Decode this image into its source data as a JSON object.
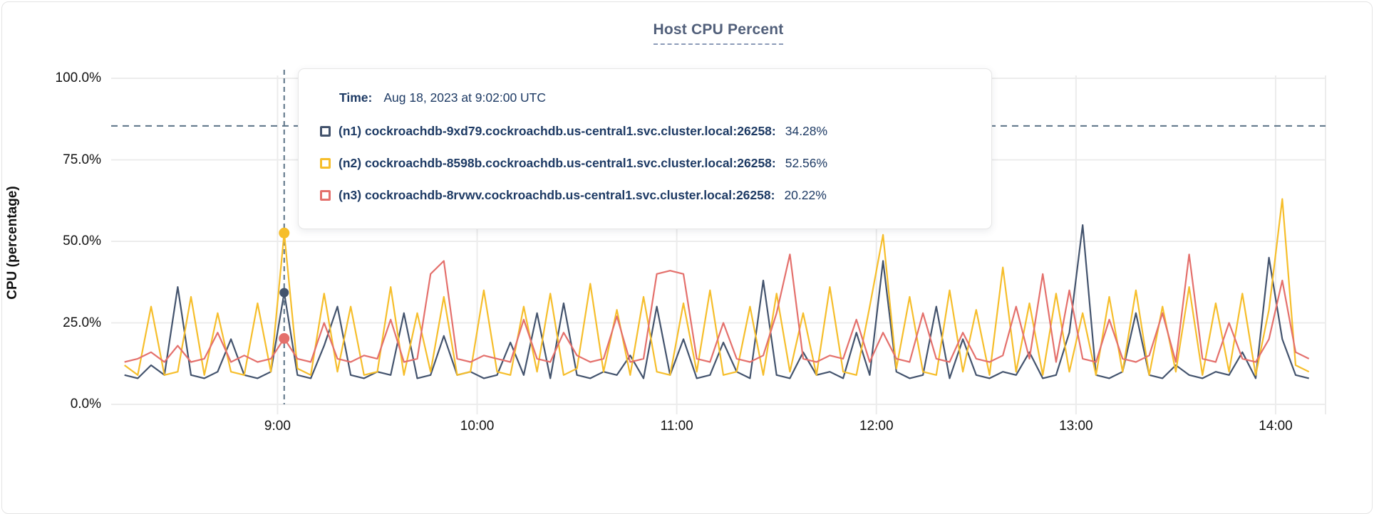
{
  "page_title": "Host CPU Percent",
  "colors": {
    "series_n1": "#43536d",
    "series_n2": "#f6be2b",
    "series_n3": "#e4706c",
    "grid": "#ececec",
    "dashed_guides": "#5b7286",
    "title_text": "#515f7a",
    "title_underline": "#8b9ab8",
    "tooltip_text": "#1d3a64",
    "axis_text": "#111111",
    "card_border": "#e4e4e4"
  },
  "chart_data": {
    "type": "line",
    "title": "Host CPU Percent",
    "xlabel": "",
    "ylabel": "CPU (percentage)",
    "grid": true,
    "legend_position": "tooltip-only",
    "ylim": [
      0,
      100
    ],
    "xlim_minutes": [
      490,
      855
    ],
    "x_start_minute": 494,
    "x_step_minutes": 4,
    "y_ticks": [
      {
        "value": 100,
        "label": "100.0%"
      },
      {
        "value": 75,
        "label": "75.0%"
      },
      {
        "value": 50,
        "label": "50.0%"
      },
      {
        "value": 25,
        "label": "25.0%"
      },
      {
        "value": 0,
        "label": "0.0%"
      }
    ],
    "x_ticks": [
      {
        "minute": 540,
        "label": "9:00"
      },
      {
        "minute": 600,
        "label": "10:00"
      },
      {
        "minute": 660,
        "label": "11:00"
      },
      {
        "minute": 720,
        "label": "12:00"
      },
      {
        "minute": 780,
        "label": "13:00"
      },
      {
        "minute": 840,
        "label": "14:00"
      }
    ],
    "threshold_line": {
      "value": 85.4,
      "style": "dashed"
    },
    "series": [
      {
        "id": "n1",
        "name": "(n1) cockroachdb-9xd79.cockroachdb.us-central1.svc.cluster.local:26258",
        "color": "#43536d",
        "values": [
          9,
          8,
          12,
          9,
          36,
          9,
          8,
          10,
          20,
          9,
          8,
          10,
          34.28,
          9,
          8,
          18,
          30,
          9,
          8,
          10,
          9,
          28,
          8,
          9,
          21,
          9,
          10,
          8,
          9,
          19,
          9,
          28,
          8,
          31,
          9,
          8,
          10,
          9,
          15,
          8,
          30,
          9,
          20,
          8,
          9,
          19,
          10,
          8,
          38,
          9,
          8,
          16,
          9,
          10,
          8,
          22,
          9,
          44,
          10,
          8,
          9,
          30,
          8,
          20,
          9,
          8,
          10,
          9,
          16,
          8,
          9,
          22,
          55,
          9,
          8,
          10,
          28,
          9,
          8,
          12,
          9,
          8,
          10,
          9,
          16,
          8,
          45,
          20,
          9,
          8
        ]
      },
      {
        "id": "n2",
        "name": "(n2) cockroachdb-8598b.cockroachdb.us-central1.svc.cluster.local:26258",
        "color": "#f6be2b",
        "values": [
          12,
          9,
          30,
          9,
          10,
          33,
          9,
          28,
          10,
          9,
          31,
          10,
          52.56,
          11,
          9,
          34,
          10,
          30,
          9,
          10,
          36,
          9,
          28,
          10,
          33,
          9,
          10,
          35,
          10,
          9,
          30,
          10,
          34,
          9,
          11,
          37,
          10,
          29,
          9,
          33,
          10,
          9,
          31,
          10,
          35,
          9,
          10,
          30,
          9,
          34,
          10,
          28,
          9,
          36,
          10,
          9,
          30,
          52,
          11,
          33,
          10,
          9,
          35,
          10,
          29,
          9,
          42,
          10,
          31,
          9,
          34,
          10,
          28,
          9,
          33,
          10,
          35,
          9,
          30,
          10,
          36,
          9,
          31,
          10,
          34,
          9,
          29,
          63,
          12,
          10
        ]
      },
      {
        "id": "n3",
        "name": "(n3) cockroachdb-8rvwv.cockroachdb.us-central1.svc.cluster.local:26258",
        "color": "#e4706c",
        "values": [
          13,
          14,
          16,
          13,
          18,
          13,
          14,
          22,
          13,
          15,
          13,
          14,
          20.22,
          14,
          13,
          25,
          14,
          13,
          15,
          14,
          26,
          13,
          14,
          40,
          44,
          14,
          13,
          15,
          14,
          13,
          26,
          14,
          13,
          22,
          15,
          13,
          14,
          27,
          13,
          14,
          40,
          41,
          40,
          14,
          13,
          25,
          14,
          13,
          15,
          28,
          46,
          14,
          13,
          15,
          14,
          26,
          13,
          22,
          14,
          13,
          28,
          14,
          13,
          22,
          14,
          13,
          15,
          30,
          14,
          40,
          13,
          35,
          14,
          13,
          26,
          14,
          13,
          15,
          28,
          13,
          46,
          14,
          13,
          25,
          14,
          13,
          20,
          38,
          16,
          14
        ]
      }
    ],
    "hover": {
      "minute": 542,
      "time_label": "Aug 18, 2023 at 9:02:00 UTC",
      "points": [
        {
          "series": "n1",
          "value": 34.28
        },
        {
          "series": "n2",
          "value": 52.56
        },
        {
          "series": "n3",
          "value": 20.22
        }
      ]
    }
  },
  "axis": {
    "ylabel": "CPU (percentage)",
    "ytick_labels": [
      "100.0%",
      "75.0%",
      "50.0%",
      "25.0%",
      "0.0%"
    ],
    "xtick_labels": [
      "9:00",
      "10:00",
      "11:00",
      "12:00",
      "13:00",
      "14:00"
    ]
  },
  "tooltip": {
    "time_label": "Time:",
    "time_value": "Aug 18, 2023 at 9:02:00 UTC",
    "rows": [
      {
        "label": "(n1) cockroachdb-9xd79.cockroachdb.us-central1.svc.cluster.local:26258:",
        "value": "34.28%",
        "color": "#43536d"
      },
      {
        "label": "(n2) cockroachdb-8598b.cockroachdb.us-central1.svc.cluster.local:26258:",
        "value": "52.56%",
        "color": "#f6be2b"
      },
      {
        "label": "(n3) cockroachdb-8rvwv.cockroachdb.us-central1.svc.cluster.local:26258:",
        "value": "20.22%",
        "color": "#e4706c"
      }
    ]
  }
}
